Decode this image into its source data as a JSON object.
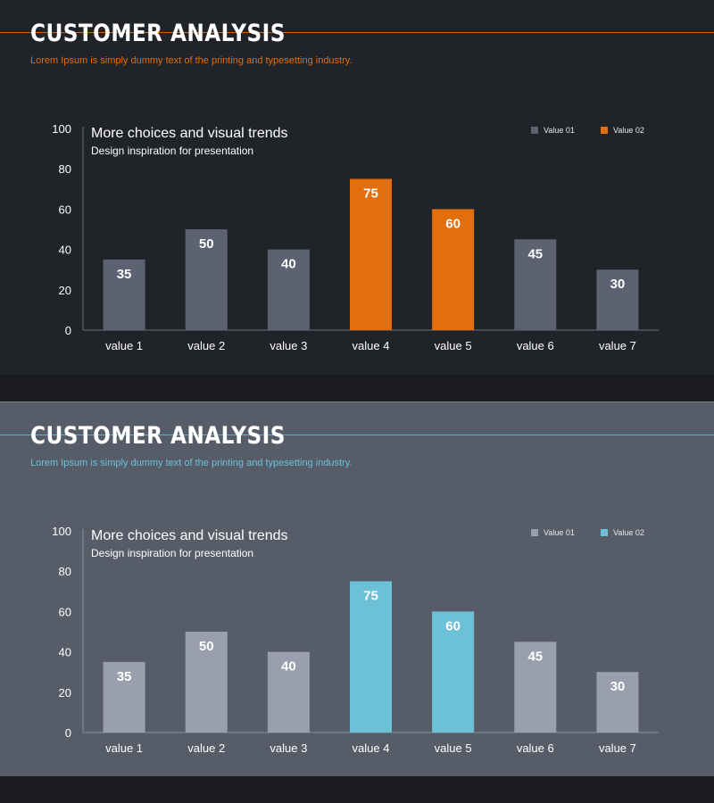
{
  "theme": {
    "dark_accent": "#e36e0c",
    "dark_bar": "#5c6271",
    "light_accent": "#6cc1d6",
    "light_bar": "#9a9fae"
  },
  "slides": [
    {
      "title": "CUSTOMER ANALYSIS",
      "subtitle": "Lorem Ipsum is simply dummy text of the printing and typesetting industry.",
      "chart_title": "More choices and visual trends",
      "chart_subtitle": "Design inspiration for presentation"
    },
    {
      "title": "CUSTOMER ANALYSIS",
      "subtitle": "Lorem Ipsum is simply dummy text of the printing and typesetting industry.",
      "chart_title": "More choices and visual trends",
      "chart_subtitle": "Design inspiration for presentation"
    }
  ],
  "chart_data": [
    {
      "type": "bar",
      "title": "More choices and visual trends",
      "subtitle": "Design inspiration for presentation",
      "categories": [
        "value 1",
        "value 2",
        "value 3",
        "value 4",
        "value 5",
        "value 6",
        "value 7"
      ],
      "values": [
        35,
        50,
        40,
        75,
        60,
        45,
        30
      ],
      "series_membership": [
        "Value 01",
        "Value 01",
        "Value 01",
        "Value 02",
        "Value 02",
        "Value 01",
        "Value 01"
      ],
      "legend": [
        "Value 01",
        "Value 02"
      ],
      "legend_position": "top-right",
      "yticks": [
        0,
        20,
        40,
        60,
        80,
        100
      ],
      "ylim": [
        0,
        100
      ],
      "xlabel": "",
      "ylabel": "",
      "grid": false
    },
    {
      "type": "bar",
      "title": "More choices and visual trends",
      "subtitle": "Design inspiration for presentation",
      "categories": [
        "value 1",
        "value 2",
        "value 3",
        "value 4",
        "value 5",
        "value 6",
        "value 7"
      ],
      "values": [
        35,
        50,
        40,
        75,
        60,
        45,
        30
      ],
      "series_membership": [
        "Value 01",
        "Value 01",
        "Value 01",
        "Value 02",
        "Value 02",
        "Value 01",
        "Value 01"
      ],
      "legend": [
        "Value 01",
        "Value 02"
      ],
      "legend_position": "top-right",
      "yticks": [
        0,
        20,
        40,
        60,
        80,
        100
      ],
      "ylim": [
        0,
        100
      ],
      "xlabel": "",
      "ylabel": "",
      "grid": false
    }
  ]
}
